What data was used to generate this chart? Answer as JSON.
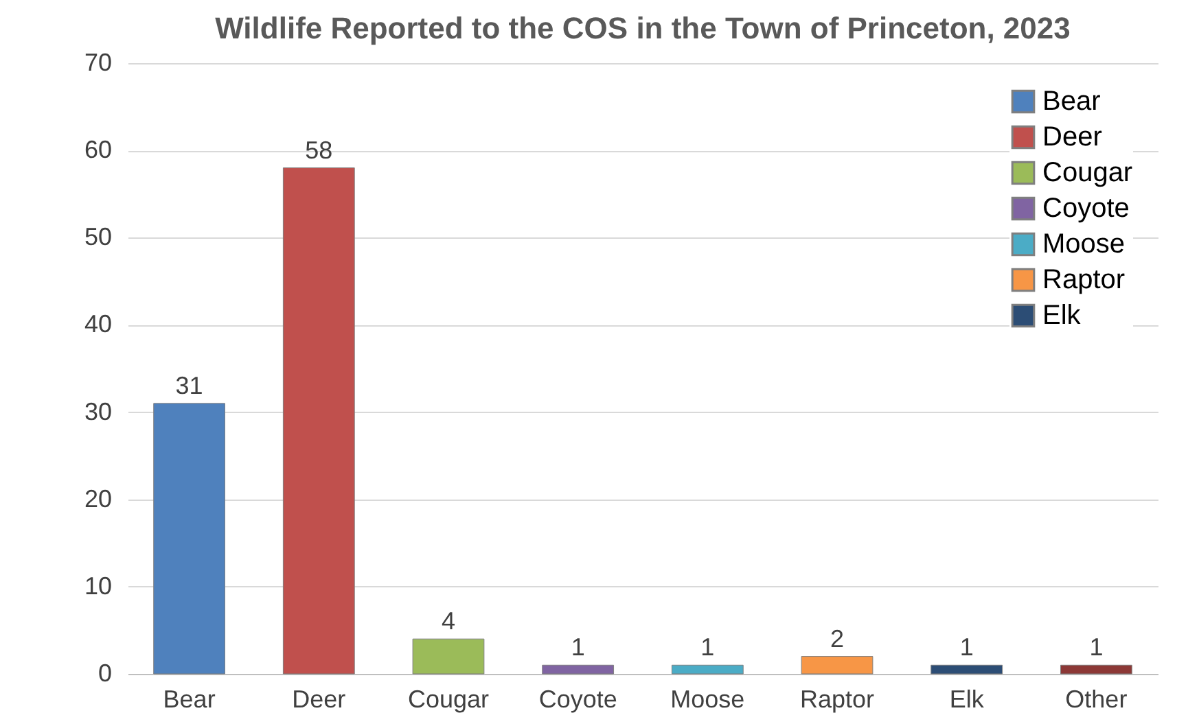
{
  "chart_data": {
    "type": "bar",
    "title": "Wildlife Reported to the COS in the Town of Princeton, 2023",
    "categories": [
      "Bear",
      "Deer",
      "Cougar",
      "Coyote",
      "Moose",
      "Raptor",
      "Elk",
      "Other"
    ],
    "series": [
      {
        "name": "Bear",
        "color": "#4f81bd",
        "values": [
          31,
          null,
          null,
          null,
          null,
          null,
          null,
          null
        ]
      },
      {
        "name": "Deer",
        "color": "#c0504d",
        "values": [
          null,
          58,
          null,
          null,
          null,
          null,
          null,
          null
        ]
      },
      {
        "name": "Cougar",
        "color": "#9bbb59",
        "values": [
          null,
          null,
          4,
          null,
          null,
          null,
          null,
          null
        ]
      },
      {
        "name": "Coyote",
        "color": "#8064a2",
        "values": [
          null,
          null,
          null,
          1,
          null,
          null,
          null,
          null
        ]
      },
      {
        "name": "Moose",
        "color": "#4bacc6",
        "values": [
          null,
          null,
          null,
          null,
          1,
          null,
          null,
          null
        ]
      },
      {
        "name": "Raptor",
        "color": "#f79646",
        "values": [
          null,
          null,
          null,
          null,
          null,
          2,
          null,
          null
        ]
      },
      {
        "name": "Elk",
        "color": "#2c4d75",
        "values": [
          null,
          null,
          null,
          null,
          null,
          null,
          1,
          null
        ]
      },
      {
        "color": "#8c3836",
        "values": [
          null,
          null,
          null,
          null,
          null,
          null,
          null,
          1
        ]
      }
    ],
    "ylim": [
      0,
      70
    ],
    "yticks": [
      0,
      10,
      20,
      30,
      40,
      50,
      60,
      70
    ],
    "grid": "y",
    "legend": "top right",
    "data_labels": true
  }
}
